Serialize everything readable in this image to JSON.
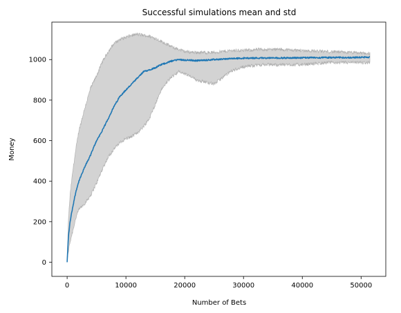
{
  "chart_data": {
    "type": "line",
    "title": "Successful simulations mean and std",
    "xlabel": "Number of Bets",
    "ylabel": "Money",
    "xlim": [
      -2600,
      54200
    ],
    "ylim": [
      -70,
      1185
    ],
    "x_ticks": [
      0,
      10000,
      20000,
      30000,
      40000,
      50000
    ],
    "y_ticks": [
      0,
      200,
      400,
      600,
      800,
      1000
    ],
    "grid": false,
    "legend": "none",
    "series": [
      {
        "style": "mean line with shaded ±1 std band",
        "color": "#1f77b4",
        "band_color": "#d3d3d3",
        "band_edge_color": "#b0b0b0",
        "x": [
          0,
          200,
          500,
          1000,
          1500,
          2000,
          3000,
          4000,
          5000,
          6000,
          7000,
          8000,
          9000,
          10000,
          11000,
          12000,
          13000,
          14000,
          15000,
          16000,
          17000,
          18000,
          19000,
          20000,
          22000,
          25000,
          28000,
          30000,
          33000,
          36000,
          40000,
          44000,
          48000,
          51500
        ],
        "mean": [
          0,
          120,
          200,
          280,
          350,
          400,
          470,
          530,
          600,
          650,
          710,
          770,
          820,
          850,
          880,
          910,
          940,
          950,
          960,
          975,
          985,
          995,
          1000,
          998,
          995,
          1000,
          1005,
          1007,
          1008,
          1008,
          1009,
          1010,
          1010,
          1012
        ],
        "upper": [
          0,
          200,
          330,
          460,
          560,
          650,
          760,
          860,
          920,
          990,
          1040,
          1080,
          1100,
          1110,
          1120,
          1125,
          1120,
          1115,
          1105,
          1090,
          1075,
          1060,
          1050,
          1040,
          1035,
          1035,
          1045,
          1045,
          1050,
          1050,
          1045,
          1040,
          1035,
          1030
        ],
        "lower": [
          0,
          50,
          100,
          160,
          220,
          260,
          290,
          330,
          390,
          460,
          520,
          560,
          590,
          610,
          620,
          640,
          670,
          710,
          780,
          850,
          890,
          920,
          940,
          930,
          900,
          880,
          945,
          965,
          975,
          975,
          975,
          985,
          985,
          985
        ]
      }
    ]
  }
}
